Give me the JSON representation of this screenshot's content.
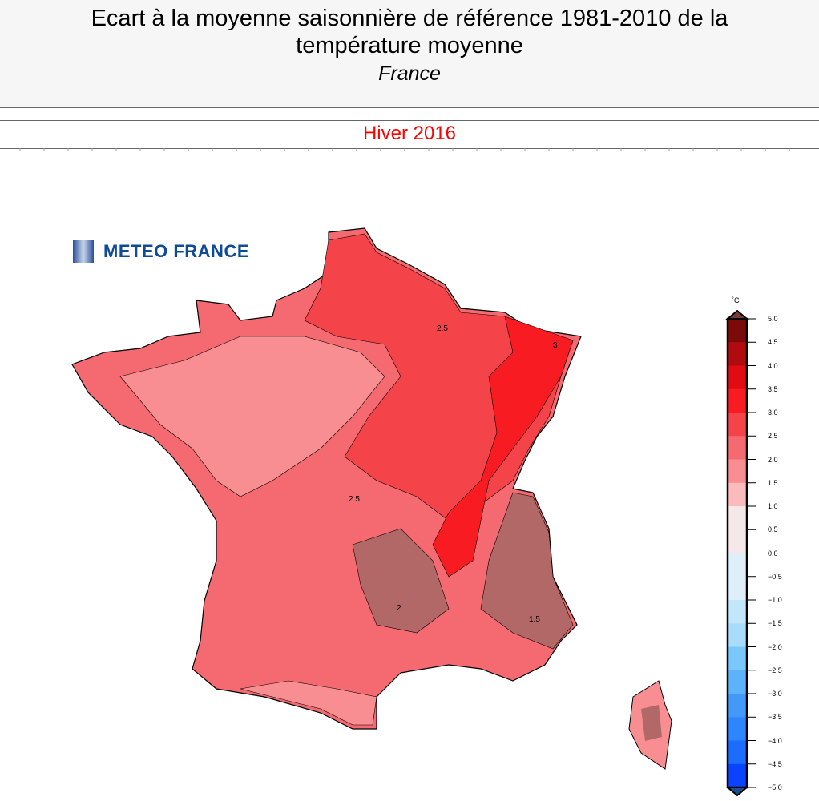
{
  "header": {
    "title": "Ecart à la moyenne saisonnière de référence 1981-2010 de la température moyenne",
    "region": "France"
  },
  "period": "Hiver 2016",
  "logo": {
    "text": "METEO FRANCE"
  },
  "colorbar": {
    "unit": "˚C",
    "labels": [
      "5.0",
      "4.5",
      "4.0",
      "3.5",
      "3.0",
      "2.5",
      "2.0",
      "1.5",
      "1.0",
      "0.5",
      "0.0",
      "−0.5",
      "−1.0",
      "−1.5",
      "−2.0",
      "−2.5",
      "−3.0",
      "−3.5",
      "−4.0",
      "−4.5",
      "−5.0"
    ],
    "colors": [
      "#7d0a0a",
      "#b00c10",
      "#e00c12",
      "#f81c22",
      "#f5434a",
      "#f46a70",
      "#f88e92",
      "#fbbabc",
      "#f5e8e9",
      "#f5e8e9",
      "#deeff9",
      "#deeff9",
      "#c2e6fa",
      "#a8dcfa",
      "#78c8fc",
      "#5cb2fb",
      "#4499f8",
      "#2e86ff",
      "#1c6cff",
      "#0a43ff"
    ]
  },
  "map": {
    "contour_labels": [
      "2.5",
      "3",
      "1.5",
      "2"
    ],
    "base_color": "#f46a70"
  }
}
